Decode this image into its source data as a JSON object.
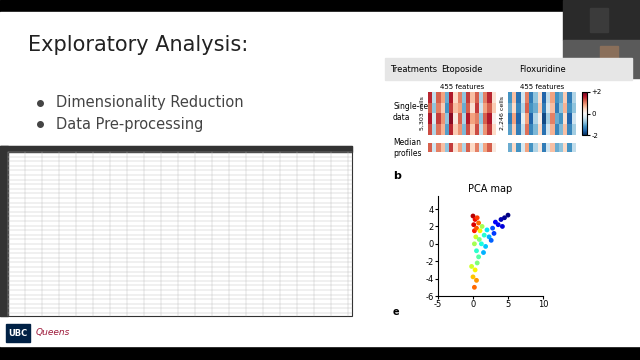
{
  "slide": {
    "title": "Exploratory Analysis:",
    "bullets": [
      "Dimensionality Reduction",
      "Data Pre-processing"
    ]
  },
  "logos": [
    "UBC",
    "Queens"
  ],
  "treatments_label": "Treatments",
  "treatments": [
    {
      "name": "Etoposide",
      "features_label": "455 features",
      "cells_label": "5,303 cells",
      "single_cell_data": [
        [
          1.5,
          -0.5,
          1.2,
          0.8,
          -1.0,
          1.6,
          0.4,
          1.0,
          -0.8,
          1.4,
          0.6,
          1.2,
          -0.6,
          1.0,
          1.5,
          0.3
        ],
        [
          1.2,
          -0.8,
          1.0,
          0.5,
          -1.2,
          1.4,
          0.6,
          0.8,
          -1.0,
          1.2,
          0.3,
          1.4,
          -0.4,
          0.8,
          1.2,
          0.5
        ],
        [
          1.6,
          -0.3,
          1.4,
          0.9,
          -0.8,
          1.8,
          0.2,
          1.2,
          -0.6,
          1.6,
          0.8,
          1.0,
          -0.8,
          1.2,
          1.6,
          0.1
        ],
        [
          1.3,
          -0.6,
          1.1,
          0.7,
          -1.1,
          1.5,
          0.5,
          0.9,
          -0.9,
          1.3,
          0.5,
          1.3,
          -0.5,
          0.9,
          1.4,
          0.4
        ]
      ],
      "median_profile": [
        1.2,
        -0.4,
        1.0,
        0.6,
        -0.8,
        1.4,
        0.3,
        0.8,
        -0.6,
        1.2,
        0.4,
        1.0,
        -0.4,
        0.8,
        1.2,
        0.2
      ]
    },
    {
      "name": "Floxuridine",
      "features_label": "455 features",
      "cells_label": "2,246 cells",
      "single_cell_data": [
        [
          -1.2,
          0.6,
          -1.5,
          -0.4,
          1.0,
          -1.4,
          -0.8,
          0.3,
          -1.6,
          -0.5,
          0.8,
          -1.2,
          -1.0,
          0.5,
          -1.4,
          -0.6
        ],
        [
          -1.0,
          0.4,
          -1.3,
          -0.6,
          1.2,
          -1.2,
          -1.0,
          0.5,
          -1.4,
          -0.3,
          0.6,
          -1.4,
          -0.8,
          0.7,
          -1.2,
          -0.8
        ],
        [
          -1.4,
          0.8,
          -1.6,
          -0.2,
          0.8,
          -1.6,
          -0.6,
          0.1,
          -1.8,
          -0.7,
          1.0,
          -1.0,
          -1.2,
          0.3,
          -1.6,
          -0.4
        ],
        [
          -1.1,
          0.5,
          -1.4,
          -0.5,
          1.1,
          -1.3,
          -0.9,
          0.4,
          -1.5,
          -0.4,
          0.7,
          -1.3,
          -0.9,
          0.6,
          -1.3,
          -0.7
        ]
      ],
      "median_profile": [
        -1.0,
        0.4,
        -1.2,
        -0.3,
        0.8,
        -1.2,
        -0.6,
        0.2,
        -1.4,
        -0.4,
        0.6,
        -1.0,
        -0.8,
        0.4,
        -1.2,
        -0.5
      ]
    }
  ],
  "row_labels": {
    "single_cell": "Single-cell\ndata",
    "median": "Median\nprofiles"
  },
  "colorbar": {
    "range": [
      -2,
      2
    ],
    "ticks": [
      {
        "value": 2,
        "label": "+2"
      },
      0,
      -2
    ]
  },
  "panel_labels": [
    "b",
    "e"
  ],
  "chart_data": {
    "type": "scatter",
    "title": "PCA map",
    "x": [
      0,
      0.3,
      0.1,
      0.6,
      0.2,
      0.8,
      0.5,
      1.0,
      0.4,
      1.3,
      0.9,
      0.2,
      1.6,
      1.2,
      2.0,
      0.5,
      2.3,
      1.8,
      0.8,
      2.8,
      3.2,
      3.6,
      4.0,
      4.5,
      5.0,
      3.0,
      2.6,
      4.2,
      1.5,
      0.6,
      0.3,
      0.0,
      0.5,
      -0.2,
      0.2
    ],
    "y": [
      3.2,
      2.8,
      2.2,
      3.0,
      1.5,
      2.4,
      1.8,
      1.5,
      0.8,
      2.0,
      0.5,
      0.0,
      1.0,
      0.0,
      1.6,
      -0.8,
      0.8,
      -0.3,
      -1.5,
      1.8,
      2.5,
      2.2,
      2.8,
      3.0,
      3.3,
      1.2,
      0.4,
      2.0,
      -1.0,
      -2.2,
      -3.0,
      -3.8,
      -4.2,
      -2.6,
      -5.0
    ],
    "color_values": [
      0.95,
      0.9,
      0.92,
      0.85,
      0.88,
      0.8,
      0.82,
      0.65,
      0.6,
      0.55,
      0.5,
      0.55,
      0.4,
      0.38,
      0.35,
      0.4,
      0.3,
      0.32,
      0.45,
      0.2,
      0.12,
      0.1,
      0.05,
      0.02,
      0.0,
      0.18,
      0.22,
      0.08,
      0.3,
      0.5,
      0.65,
      0.7,
      0.75,
      0.6,
      0.8
    ],
    "xlim": [
      -5,
      10
    ],
    "xticks": [
      -5,
      0,
      5,
      10
    ],
    "ylim": [
      -6,
      5.5
    ],
    "yticks": [
      4,
      2,
      0,
      -2,
      -4,
      -6
    ]
  }
}
